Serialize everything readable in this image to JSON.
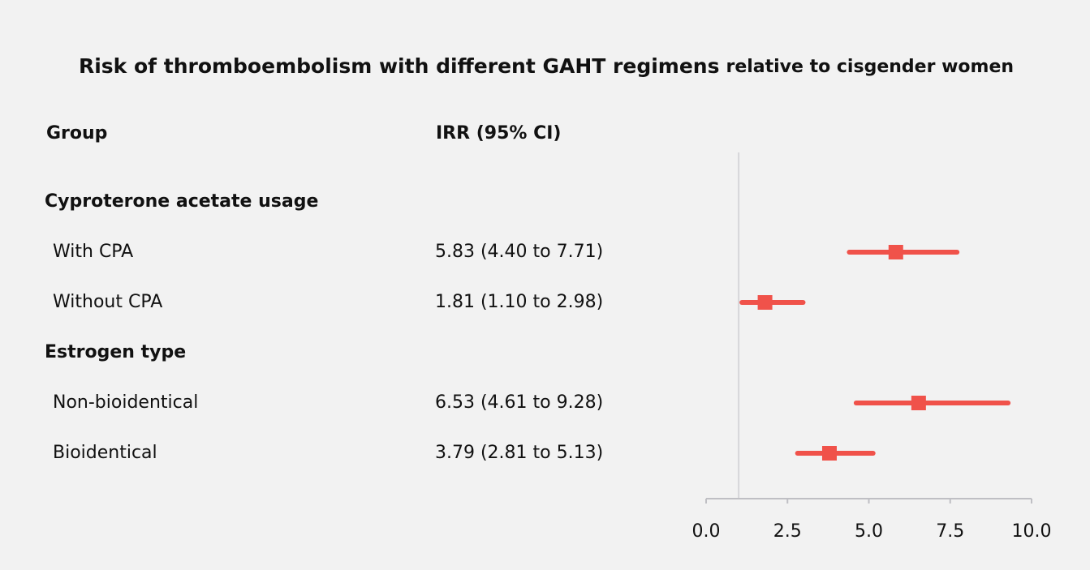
{
  "chart_data": {
    "type": "forest",
    "title": "Risk of thromboembolism with different GAHT regimens",
    "subtitle": "relative to cisgender women",
    "columns": [
      "Group",
      "IRR (95% CI)"
    ],
    "color": "#f0524a",
    "reference_line": 1,
    "xlim": [
      0,
      10
    ],
    "xticks": [
      {
        "value": 0,
        "label": "0.0"
      },
      2.5,
      {
        "value": 5,
        "label": "5.0"
      },
      7.5,
      {
        "value": 10,
        "label": "10.0"
      }
    ],
    "series": [
      {
        "name": "Cyproterone acetate usage",
        "categories": [
          "With CPA",
          "Without CPA"
        ],
        "values": [
          5.83,
          1.81
        ],
        "lower": [
          4.4,
          1.1
        ],
        "upper": [
          7.71,
          2.98
        ],
        "value_labels": [
          "5.83 (4.40 to 7.71)",
          "1.81 (1.10 to 2.98)"
        ]
      },
      {
        "name": "Estrogen type",
        "categories": [
          "Non-bioidentical",
          "Bioidentical"
        ],
        "values": [
          6.53,
          3.79
        ],
        "lower": [
          4.61,
          2.81
        ],
        "upper": [
          9.28,
          5.13
        ],
        "value_labels": [
          "6.53 (4.61 to 9.28)",
          "3.79 (2.81 to 5.13)"
        ]
      }
    ]
  }
}
